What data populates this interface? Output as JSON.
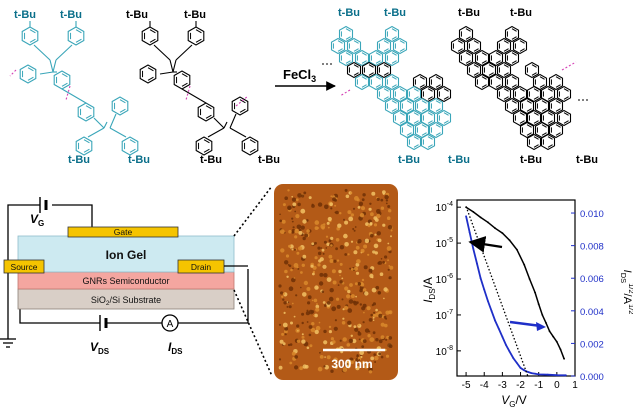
{
  "reaction": {
    "substituent": "t-Bu",
    "reagent_base": "FeCl",
    "reagent_sub": "3"
  },
  "device": {
    "vg_base": "V",
    "vg_sub": "G",
    "gate": "Gate",
    "ion_gel": "Ion Gel",
    "source": "Source",
    "drain": "Drain",
    "semiconductor": "GNRs Semiconductor",
    "substrate_a": "SiO",
    "substrate_sub": "2",
    "substrate_b": "/Si Substrate",
    "vds_base": "V",
    "vds_sub": "DS",
    "ammeter": "A",
    "ids_base": "I",
    "ids_sub": "DS"
  },
  "afm": {
    "scale_bar": "300 nm"
  },
  "colors": {
    "cyan_accent": "#3aa6b9",
    "magenta_bond": "#d43fb5",
    "gate_fill": "#f5c400",
    "ion_gel_fill": "#cdeaf1",
    "semiconductor_fill": "#f4a6a0",
    "substrate_fill": "#d9cfc7",
    "afm_base": "#b35a17",
    "sqrt_curve": "#1f2fc8"
  },
  "chart_data": {
    "type": "line",
    "title": "",
    "xlabel": "V_G/V",
    "ylabel_left": "I_DS/A",
    "ylabel_right": "I_DS^1/2/A^1/2",
    "x_ticks": [
      "-5",
      "-4",
      "-3",
      "-2",
      "-1",
      "0",
      "1"
    ],
    "left_ticks": [
      "10-4",
      "10-5",
      "10-6",
      "10-7",
      "10-8"
    ],
    "right_ticks": [
      "0.000",
      "0.002",
      "0.004",
      "0.006",
      "0.008",
      "0.010"
    ],
    "xlim": [
      -5.5,
      1
    ],
    "left_ylim_log10": [
      -8.7,
      -3.8
    ],
    "right_ylim": [
      0,
      0.0108
    ],
    "series": [
      {
        "axis": "left",
        "scale": "log",
        "color": "#000000",
        "x": [
          -5.0,
          -4.6,
          -4.2,
          -3.8,
          -3.4,
          -3.0,
          -2.6,
          -2.2,
          -1.8,
          -1.5,
          -1.2,
          -1.0,
          -0.8,
          -0.6,
          -0.4,
          -0.2,
          0.0,
          0.2,
          0.4
        ],
        "y": [
          0.0001,
          7.4e-05,
          5.2e-05,
          3.8e-05,
          2.6e-05,
          1.9e-05,
          1.2e-05,
          6.6e-06,
          2.5e-06,
          1e-06,
          4.2e-07,
          2e-07,
          1e-07,
          6e-08,
          3.5e-08,
          2.5e-08,
          1.8e-08,
          1.1e-08,
          6e-09
        ]
      },
      {
        "axis": "right",
        "scale": "linear",
        "color": "#1f2fc8",
        "x": [
          -5.0,
          -4.8,
          -4.6,
          -4.4,
          -4.2,
          -4.0,
          -3.8,
          -3.6,
          -3.4,
          -3.2,
          -3.0,
          -2.8,
          -2.6,
          -2.4,
          -2.2,
          -2.0,
          -1.8,
          -1.6,
          -1.4,
          -1.2,
          -1.0,
          -0.5,
          0.0,
          0.5
        ],
        "y": [
          0.0098,
          0.0088,
          0.0078,
          0.0069,
          0.006,
          0.0053,
          0.0046,
          0.004,
          0.0034,
          0.0029,
          0.0024,
          0.0019,
          0.0015,
          0.0011,
          0.0008,
          0.0005,
          0.00035,
          0.00025,
          0.00018,
          0.00014,
          0.0001,
          8e-05,
          5e-05,
          4e-05
        ]
      }
    ]
  }
}
